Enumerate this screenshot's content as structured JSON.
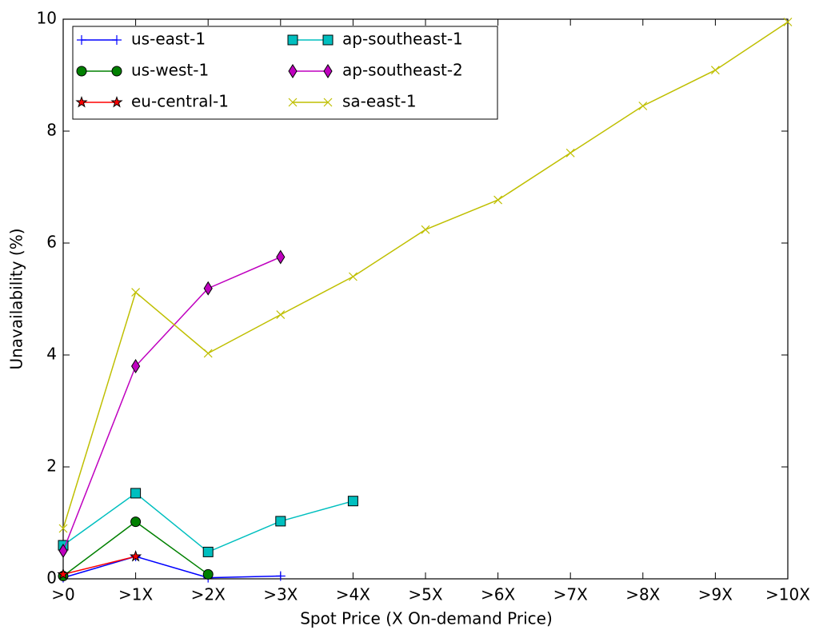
{
  "chart_data": {
    "type": "line",
    "x_label": "Spot Price (X On-demand Price)",
    "y_label": "Unavailability (%)",
    "categories": [
      ">0",
      ">1X",
      ">2X",
      ">3X",
      ">4X",
      ">5X",
      ">6X",
      ">7X",
      ">8X",
      ">9X",
      ">10X"
    ],
    "ylim": [
      0,
      10
    ],
    "yticks": [
      0,
      2,
      4,
      6,
      8,
      10
    ],
    "legend": "upper-left",
    "series": [
      {
        "name": "us-east-1",
        "color": "#0000ff",
        "marker": "plus",
        "values": [
          0.02,
          0.4,
          0.02,
          0.05,
          null,
          null,
          null,
          null,
          null,
          null,
          null
        ]
      },
      {
        "name": "us-west-1",
        "color": "#008000",
        "marker": "circle",
        "values": [
          0.05,
          1.02,
          0.08,
          null,
          null,
          null,
          null,
          null,
          null,
          null,
          null
        ]
      },
      {
        "name": "eu-central-1",
        "color": "#ff0000",
        "marker": "star",
        "values": [
          0.08,
          0.4,
          null,
          null,
          null,
          null,
          null,
          null,
          null,
          null,
          null
        ]
      },
      {
        "name": "ap-southeast-1",
        "color": "#00bfbf",
        "marker": "square",
        "values": [
          0.6,
          1.53,
          0.48,
          1.03,
          1.39,
          null,
          null,
          null,
          null,
          null,
          null
        ]
      },
      {
        "name": "ap-southeast-2",
        "color": "#bf00bf",
        "marker": "diamond",
        "values": [
          0.5,
          3.8,
          5.19,
          5.75,
          null,
          null,
          null,
          null,
          null,
          null,
          null
        ]
      },
      {
        "name": "sa-east-1",
        "color": "#bfbf00",
        "marker": "x",
        "values": [
          0.9,
          5.12,
          4.03,
          4.72,
          5.4,
          6.24,
          6.77,
          7.61,
          8.45,
          9.09,
          9.95
        ]
      }
    ]
  }
}
